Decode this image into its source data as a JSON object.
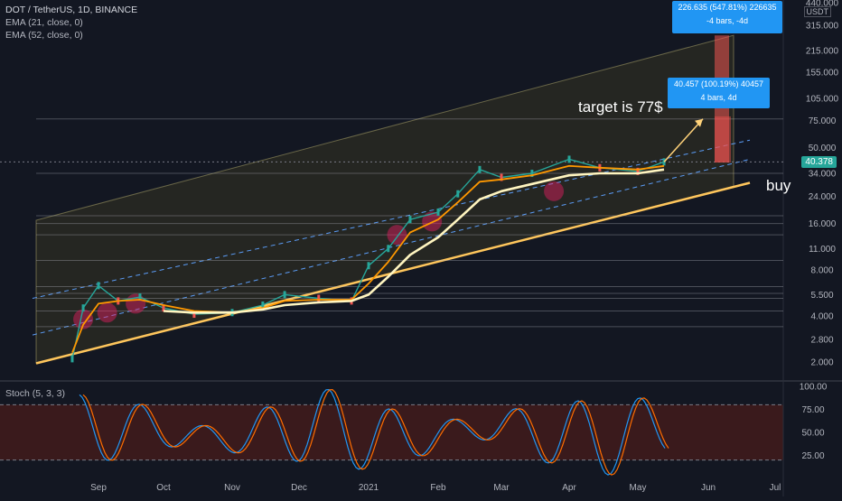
{
  "header": {
    "title": "DOT / TetherUS, 1D, BINANCE",
    "ema21": "EMA (21, close, 0)",
    "ema52": "EMA (52, close, 0)",
    "stoch": "Stoch (5, 3, 3)",
    "currency": "USDT"
  },
  "annotations": {
    "target": "target is 77$",
    "buy": "buy"
  },
  "measure_top": {
    "line1": "226.635 (547.81%) 226635",
    "line2": "-4 bars, -4d"
  },
  "measure_mid": {
    "line1": "40.457 (100.19%) 40457",
    "line2": "4 bars, 4d"
  },
  "last_price": "40.378",
  "colors": {
    "background": "#131722",
    "ema21": "#ff9800",
    "ema52": "#fff5c0",
    "up": "#26a69a",
    "down": "#ef5350",
    "stoch_k": "#2196f3",
    "stoch_d": "#ff6d00",
    "trendline": "#ffc65c",
    "channel": "#5b9cf6",
    "measure": "#2196f3"
  },
  "chart_data": {
    "type": "line",
    "symbol": "DOT / TetherUS, 1D, BINANCE",
    "y_scale": "log",
    "x_ticks": [
      "Sep",
      "Oct",
      "Nov",
      "Dec",
      "2021",
      "Feb",
      "Mar",
      "Apr",
      "May",
      "Jun",
      "Jul"
    ],
    "y_ticks": [
      "440.000",
      "315.000",
      "215.000",
      "155.000",
      "105.000",
      "75.000",
      "50.000",
      "34.000",
      "24.000",
      "16.000",
      "11.000",
      "8.000",
      "5.500",
      "4.000",
      "2.800",
      "2.000"
    ],
    "x": [
      "Aug 20",
      "Aug 25",
      "Sep 1",
      "Sep 10",
      "Sep 20",
      "Oct 1",
      "Oct 15",
      "Nov 1",
      "Nov 15",
      "Nov 25",
      "Dec 10",
      "Dec 25",
      "Jan 1",
      "Jan 10",
      "Jan 20",
      "Feb 1",
      "Feb 10",
      "Feb 20",
      "Mar 1",
      "Mar 15",
      "Apr 1",
      "Apr 15",
      "May 1",
      "May 13"
    ],
    "series": [
      {
        "name": "DOT",
        "values": [
          2.1,
          4.5,
          6.3,
          5.0,
          5.3,
          4.5,
          4.1,
          4.2,
          4.7,
          5.5,
          5.2,
          5.0,
          8.5,
          11,
          17,
          19,
          25,
          36,
          32,
          34,
          42,
          37,
          35,
          40.378
        ]
      },
      {
        "name": "EMA (21, close, 0)",
        "values": [
          2.3,
          3.5,
          4.8,
          5.0,
          5.1,
          4.7,
          4.3,
          4.2,
          4.5,
          5.0,
          5.1,
          5.1,
          6.5,
          9.0,
          14,
          17,
          22,
          30,
          31,
          33,
          38,
          37,
          36,
          38
        ]
      },
      {
        "name": "EMA (52, close, 0)",
        "values": [
          null,
          null,
          null,
          null,
          null,
          4.3,
          4.2,
          4.2,
          4.4,
          4.7,
          4.9,
          5.0,
          5.5,
          7.2,
          10,
          13,
          17,
          23,
          26,
          29,
          33,
          34,
          34,
          36
        ]
      }
    ],
    "stoch": {
      "name": "Stoch (5, 3, 3)",
      "y_ticks": [
        "100.00",
        "75.00",
        "50.00",
        "25.00"
      ],
      "bands": [
        20,
        80
      ]
    },
    "grid": false,
    "legend": "top-left"
  }
}
